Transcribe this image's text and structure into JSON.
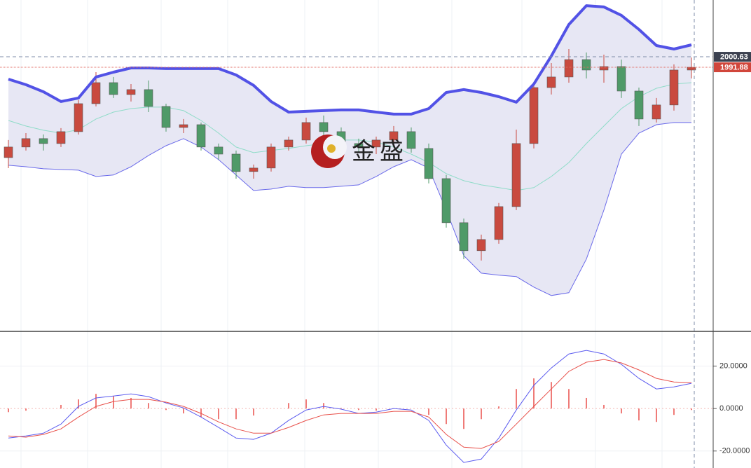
{
  "watermark": "金盛",
  "chart_data": [
    {
      "type": "candlestick",
      "ylim": [
        1772.6,
        2047.9
      ],
      "up_color": "#c94a3f",
      "down_color": "#4f9a68",
      "crosshair_price": 2000.63,
      "last_price": 1991.88,
      "open": [
        1916.7,
        1925.5,
        1932.5,
        1928.4,
        1938.3,
        1961.6,
        1979.1,
        1969.2,
        1973.3,
        1959.3,
        1941.8,
        1944.1,
        1925.5,
        1919.6,
        1905.1,
        1908.0,
        1925.5,
        1931.3,
        1945.9,
        1938.3,
        1928.4,
        1925.5,
        1931.3,
        1938.3,
        1924.3,
        1899.2,
        1862.5,
        1839.2,
        1848.5,
        1875.9,
        1928.4,
        1975.0,
        1983.8,
        1998.3,
        1989.6,
        1992.5,
        1972.1,
        1948.8,
        1960.5,
        1989.6
      ],
      "high": [
        1931.3,
        1937.1,
        1936.0,
        1941.2,
        1964.5,
        1987.8,
        1983.8,
        1977.9,
        1980.9,
        1961.6,
        1948.8,
        1945.9,
        1928.4,
        1922.6,
        1910.9,
        1928.4,
        1934.2,
        1950.0,
        1951.7,
        1941.8,
        1932.5,
        1934.2,
        1943.0,
        1941.8,
        1928.4,
        1902.2,
        1866.0,
        1852.6,
        1878.9,
        1940.0,
        1979.1,
        1995.4,
        2007.1,
        2004.2,
        2002.4,
        1998.3,
        1975.0,
        1966.3,
        1994.3,
        2000.0
      ],
      "low": [
        1907.9,
        1922.6,
        1922.6,
        1925.5,
        1935.9,
        1959.3,
        1966.3,
        1963.4,
        1954.6,
        1938.3,
        1937.1,
        1922.6,
        1915.0,
        1899.2,
        1899.2,
        1905.1,
        1922.6,
        1928.4,
        1934.2,
        1924.3,
        1920.8,
        1919.6,
        1928.4,
        1920.8,
        1895.2,
        1858.4,
        1832.2,
        1831.0,
        1845.0,
        1873.0,
        1924.3,
        1969.2,
        1979.1,
        1982.6,
        1979.1,
        1966.3,
        1943.0,
        1945.9,
        1955.8,
        1982.6
      ],
      "close": [
        1925.5,
        1932.5,
        1928.4,
        1938.3,
        1961.6,
        1979.1,
        1969.2,
        1973.3,
        1959.3,
        1941.8,
        1944.1,
        1925.5,
        1919.6,
        1905.1,
        1908.0,
        1925.5,
        1931.3,
        1945.9,
        1938.3,
        1928.4,
        1925.5,
        1931.3,
        1938.3,
        1924.3,
        1899.2,
        1862.5,
        1839.2,
        1848.5,
        1875.9,
        1928.4,
        1975.0,
        1983.8,
        1998.3,
        1989.6,
        1992.5,
        1972.1,
        1948.8,
        1960.5,
        1989.6,
        1991.9
      ],
      "bands": {
        "fill": "#e7e7f4",
        "upper_color": "#5252e6",
        "middle_color": "#8fdcc8",
        "lower_color": "#6a6aea",
        "upper": [
          1982.0,
          1977.4,
          1971.5,
          1963.4,
          1966.3,
          1983.8,
          1987.8,
          1991.3,
          1991.3,
          1990.8,
          1990.8,
          1990.8,
          1990.8,
          1985.5,
          1976.8,
          1963.4,
          1954.6,
          1955.2,
          1955.8,
          1956.4,
          1956.4,
          1954.6,
          1952.9,
          1952.9,
          1957.5,
          1970.9,
          1973.3,
          1970.9,
          1967.4,
          1962.8,
          1977.9,
          2001.3,
          2027.5,
          2043.2,
          2042.1,
          2035.1,
          2023.4,
          2010.0,
          2007.1,
          2010.6
        ],
        "middle": [
          1947.6,
          1943.0,
          1939.5,
          1937.1,
          1940.0,
          1948.8,
          1954.6,
          1957.5,
          1958.7,
          1958.7,
          1955.8,
          1947.6,
          1937.1,
          1925.5,
          1920.8,
          1922.6,
          1924.3,
          1926.6,
          1928.4,
          1931.3,
          1931.3,
          1929.6,
          1925.5,
          1919.6,
          1912.6,
          1903.3,
          1897.5,
          1894.0,
          1891.7,
          1889.3,
          1891.7,
          1901.0,
          1912.6,
          1928.4,
          1943.0,
          1957.5,
          1967.4,
          1974.4,
          1977.9,
          1979.1
        ],
        "lower": [
          1910.3,
          1909.1,
          1907.4,
          1906.8,
          1906.2,
          1901.0,
          1902.2,
          1909.1,
          1918.5,
          1926.6,
          1932.5,
          1925.5,
          1915.0,
          1902.2,
          1889.3,
          1890.5,
          1892.8,
          1891.7,
          1891.7,
          1892.8,
          1894.0,
          1901.0,
          1909.1,
          1915.0,
          1908.0,
          1873.0,
          1835.1,
          1820.5,
          1818.8,
          1817.6,
          1808.9,
          1801.9,
          1804.2,
          1832.2,
          1873.0,
          1919.6,
          1937.1,
          1944.1,
          1945.9,
          1945.9
        ]
      }
    },
    {
      "type": "macd",
      "ylim": [
        -28,
        36
      ],
      "yticks": [
        {
          "value": 20,
          "label": "20.0000"
        },
        {
          "value": 0,
          "label": "0.0000"
        },
        {
          "value": -20,
          "label": "-20.0000"
        }
      ],
      "grid": true,
      "series": [
        {
          "color": "#5b5bef",
          "values": [
            -13.9,
            -12.9,
            -11.6,
            -7.3,
            1.0,
            5.0,
            5.9,
            6.9,
            5.6,
            2.6,
            0.3,
            -4.0,
            -8.9,
            -13.9,
            -14.5,
            -11.6,
            -5.6,
            -0.7,
            1.0,
            -0.3,
            -2.3,
            -1.7,
            0.0,
            -0.7,
            -5.6,
            -17.2,
            -25.4,
            -23.8,
            -13.9,
            -0.7,
            10.9,
            19.1,
            25.7,
            27.4,
            25.7,
            20.8,
            14.2,
            9.2,
            10.2,
            11.9
          ]
        },
        {
          "color": "#e8504a",
          "values": [
            -12.9,
            -13.5,
            -12.2,
            -9.6,
            -4.0,
            1.0,
            3.3,
            4.3,
            4.3,
            3.0,
            1.0,
            -2.3,
            -6.3,
            -9.6,
            -11.6,
            -11.6,
            -8.9,
            -5.6,
            -3.0,
            -2.3,
            -2.3,
            -2.3,
            -1.3,
            -1.3,
            -4.0,
            -12.2,
            -18.2,
            -18.8,
            -15.5,
            -7.3,
            1.0,
            9.2,
            17.5,
            21.8,
            23.1,
            21.5,
            18.2,
            14.2,
            12.5,
            12.2
          ]
        }
      ],
      "histogram": {
        "color": "#ef7b78",
        "values": [
          -1.7,
          -1.0,
          0.0,
          1.7,
          4.3,
          6.9,
          5.9,
          5.0,
          2.6,
          -0.7,
          -2.3,
          -4.0,
          -5.0,
          -5.0,
          -3.3,
          0.0,
          2.6,
          4.3,
          2.6,
          0.3,
          -0.7,
          -1.0,
          0.0,
          0.0,
          -3.0,
          -7.3,
          -9.6,
          -5.0,
          1.0,
          9.2,
          14.2,
          12.5,
          9.2,
          5.0,
          1.7,
          -2.3,
          -5.6,
          -6.3,
          -3.0,
          -0.7
        ]
      }
    }
  ]
}
